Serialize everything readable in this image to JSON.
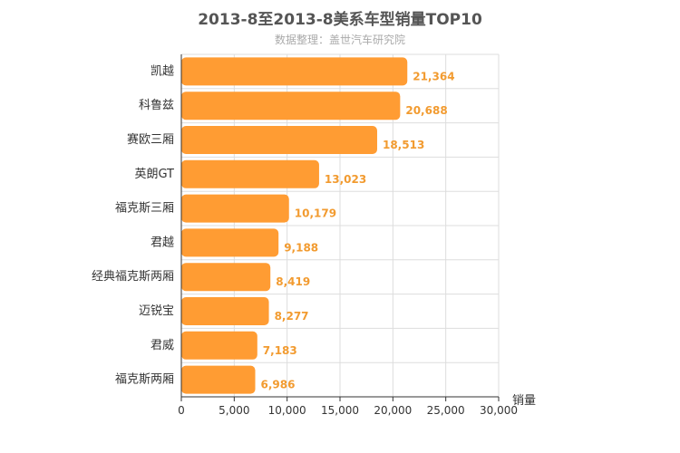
{
  "chart_data": {
    "type": "bar",
    "orientation": "horizontal",
    "title": "2013-8至2013-8美系车型销量TOP10",
    "subtitle": "数据整理：盖世汽车研究院",
    "categories": [
      "凯越",
      "科鲁兹",
      "赛欧三厢",
      "英朗GT",
      "福克斯三厢",
      "君越",
      "经典福克斯两厢",
      "迈锐宝",
      "君威",
      "福克斯两厢"
    ],
    "values": [
      21364,
      20688,
      18513,
      13023,
      10179,
      9188,
      8419,
      8277,
      7183,
      6986
    ],
    "value_labels": [
      "21,364",
      "20,688",
      "18,513",
      "13,023",
      "10,179",
      "9,188",
      "8,419",
      "8,277",
      "7,183",
      "6,986"
    ],
    "xlabel": "销量",
    "ylabel": "",
    "xlim": [
      0,
      30000
    ],
    "x_ticks": [
      0,
      5000,
      10000,
      15000,
      20000,
      25000,
      30000
    ],
    "x_tick_labels": [
      "0",
      "5,000",
      "10,000",
      "15,000",
      "20,000",
      "25,000",
      "30,000"
    ],
    "grid": true,
    "legend": "none",
    "bar_color": "#ff9c33",
    "label_color": "#f29b30"
  }
}
